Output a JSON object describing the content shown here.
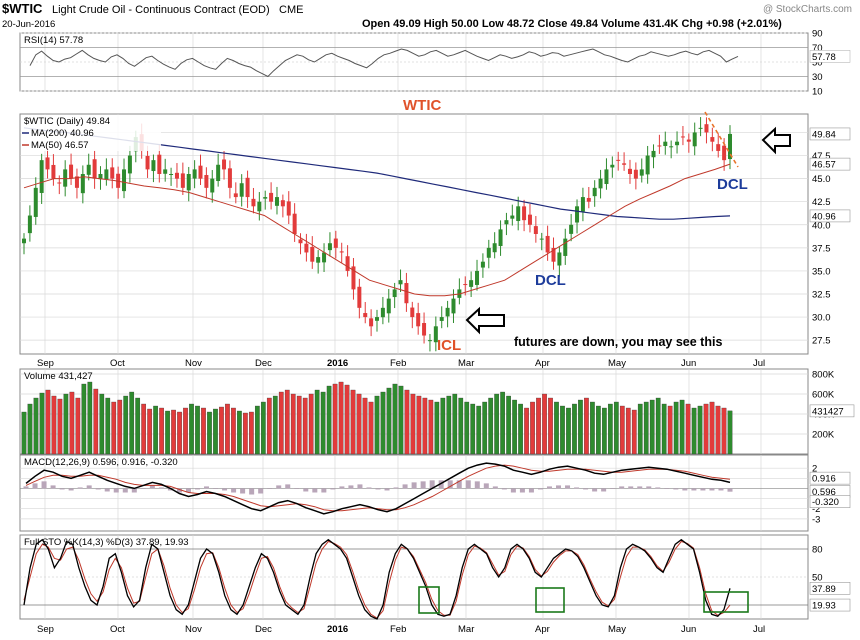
{
  "header": {
    "symbol": "$WTIC",
    "name": "Light Crude Oil - Continuous Contract (EOD)",
    "exchange": "CME",
    "date": "20-Jun-2016",
    "ohlc": "Open 49.09  High 50.00  Low 48.72  Close 49.84  Volume 431.4K  Chg +0.98 (+2.01%)",
    "open": 49.09,
    "high": 50.0,
    "low": 48.72,
    "close": 49.84,
    "watermark": "@ StockCharts.com"
  },
  "x_axis": {
    "labels": [
      "Sep",
      "Oct",
      "Nov",
      "Dec",
      "2016",
      "Feb",
      "Mar",
      "Apr",
      "May",
      "Jun",
      "Jul"
    ],
    "bold_labels": [
      "2016"
    ]
  },
  "chart_data": [
    {
      "type": "line",
      "panel": "rsi",
      "title": "RSI(14) 57.78",
      "series": [
        {
          "name": "RSI(14)",
          "last": 57.78
        }
      ],
      "ylim": [
        10,
        90
      ],
      "yticks": [
        10,
        30,
        50,
        70,
        90
      ],
      "reference_lines": [
        30,
        70
      ],
      "last_label": "57.78",
      "values": [
        45,
        60,
        65,
        58,
        52,
        50,
        54,
        56,
        61,
        66,
        60,
        55,
        52,
        50,
        57,
        60,
        55,
        48,
        44,
        50,
        56,
        58,
        52,
        47,
        43,
        40,
        48,
        53,
        55,
        50,
        45,
        42,
        40,
        48,
        55,
        52,
        48,
        45,
        43,
        38,
        34,
        30,
        38,
        45,
        52,
        56,
        60,
        58,
        53,
        50,
        55,
        60,
        62,
        58,
        55,
        52,
        48,
        45,
        42,
        48,
        55,
        60,
        62,
        65,
        68,
        66,
        62,
        58,
        60,
        64,
        66,
        62,
        58,
        60,
        63,
        66,
        62,
        58,
        55,
        52,
        56,
        60,
        58,
        55,
        57,
        60,
        64,
        62,
        58,
        60,
        63,
        62,
        58,
        60,
        62,
        64,
        66,
        68,
        64,
        60,
        58,
        55,
        52,
        50,
        54,
        58,
        60,
        64,
        62,
        60,
        58,
        60,
        63,
        65,
        62,
        60,
        64,
        66,
        62,
        58,
        50,
        54,
        57.78
      ]
    },
    {
      "type": "candlestick",
      "panel": "price",
      "title": "$WTIC (Daily) 49.84",
      "series": [
        {
          "name": "$WTIC (Daily)",
          "last": 49.84
        },
        {
          "name": "MA(200)",
          "last": 40.96
        },
        {
          "name": "MA(50)",
          "last": 46.57
        }
      ],
      "legend": [
        "$WTIC (Daily) 49.84",
        "MA(200) 40.96",
        "MA(50) 46.57"
      ],
      "ylim": [
        26.0,
        52.0
      ],
      "yticks": [
        27.5,
        30.0,
        32.5,
        35.0,
        37.5,
        40.0,
        42.5,
        45.0,
        47.5,
        50.0
      ],
      "last_labels": {
        "close": "49.84",
        "ma50": "46.57",
        "ma200": "40.96"
      },
      "closes": [
        38.5,
        41,
        44,
        47,
        46,
        45,
        44.5,
        46,
        45,
        44,
        45.5,
        46.5,
        45,
        45.5,
        46,
        45,
        44,
        46,
        47.5,
        49.5,
        48,
        46,
        47,
        45.5,
        46,
        45.5,
        45,
        44,
        45.5,
        46,
        45,
        44,
        45,
        46.5,
        46,
        44,
        43,
        44.5,
        43,
        42,
        42.5,
        43,
        42.5,
        43,
        42,
        41,
        39,
        38,
        37,
        36,
        36.5,
        37,
        38,
        37.5,
        37,
        35,
        33,
        31,
        30,
        29,
        30,
        31,
        32,
        33,
        34,
        31.5,
        30,
        29,
        28,
        27.5,
        29,
        30,
        31,
        32,
        33,
        33.5,
        34,
        35,
        36,
        37.5,
        38,
        39.5,
        40.5,
        41,
        42,
        40.5,
        40,
        39,
        38.5,
        37,
        36,
        37,
        38.5,
        40,
        42,
        43,
        42.5,
        44,
        45,
        46,
        46.5,
        47,
        46.5,
        45.5,
        45,
        46,
        47.5,
        48,
        48.5,
        49,
        48.5,
        49,
        49.5,
        49,
        50,
        50.5,
        50,
        49,
        48,
        47,
        49.84
      ],
      "ma200": [
        50.5,
        50.3,
        50.1,
        50,
        49.8,
        49.6,
        49.4,
        49.2,
        49,
        48.8,
        48.6,
        48.4,
        48.2,
        48,
        47.8,
        47.6,
        47.4,
        47.2,
        47,
        46.8,
        46.6,
        46.4,
        46.2,
        46,
        45.8,
        45.6,
        45.3,
        45,
        44.7,
        44.4,
        44.1,
        43.8,
        43.5,
        43.2,
        42.9,
        42.6,
        42.3,
        42,
        41.7,
        41.5,
        41.3,
        41.1,
        40.9,
        40.8,
        40.7,
        40.6,
        40.6,
        40.7,
        40.8,
        40.9,
        40.96
      ],
      "ma50": [
        44,
        44.5,
        45,
        45,
        45.2,
        45,
        44.8,
        44.5,
        44.2,
        44,
        43.8,
        43.5,
        43,
        42.5,
        42,
        41.5,
        41,
        40,
        39,
        38,
        37,
        36,
        35,
        34,
        33.5,
        33,
        32.5,
        32.3,
        32.3,
        32.5,
        33,
        33.5,
        34,
        35,
        36,
        37,
        38,
        39,
        40,
        41,
        42,
        42.8,
        43.5,
        44.2,
        45,
        45.5,
        46,
        46.57
      ],
      "annotations": [
        {
          "text": "WTIC",
          "color": "#e0522a"
        },
        {
          "text": "ICL",
          "color": "#e0522a"
        },
        {
          "text": "DCL",
          "color": "#1d3c9b"
        },
        {
          "text": "DCL",
          "color": "#1d3c9b"
        },
        {
          "text": "futures are down, you may see this",
          "color": "#000000"
        }
      ]
    },
    {
      "type": "bar",
      "panel": "volume",
      "title": "Volume 431,427",
      "series": [
        {
          "name": "Volume",
          "last": 431427
        }
      ],
      "ylim": [
        0,
        850000
      ],
      "yticks_labels": [
        "200K",
        "400K",
        "600K",
        "800K"
      ],
      "yticks": [
        200000,
        400000,
        600000,
        800000
      ],
      "last_label": "431427",
      "values": [
        420000,
        500000,
        560000,
        610000,
        640000,
        580000,
        550000,
        600000,
        620000,
        560000,
        700000,
        720000,
        650000,
        600000,
        560000,
        520000,
        540000,
        580000,
        620000,
        560000,
        500000,
        450000,
        480000,
        460000,
        430000,
        440000,
        420000,
        460000,
        500000,
        480000,
        460000,
        420000,
        450000,
        470000,
        500000,
        460000,
        430000,
        410000,
        420000,
        480000,
        520000,
        560000,
        580000,
        620000,
        640000,
        600000,
        580000,
        560000,
        600000,
        640000,
        620000,
        680000,
        700000,
        720000,
        690000,
        640000,
        600000,
        560000,
        520000,
        580000,
        620000,
        660000,
        700000,
        680000,
        640000,
        600000,
        580000,
        560000,
        540000,
        520000,
        560000,
        580000,
        600000,
        560000,
        520000,
        500000,
        480000,
        520000,
        560000,
        600000,
        620000,
        580000,
        540000,
        500000,
        460000,
        520000,
        560000,
        600000,
        560000,
        520000,
        480000,
        460000,
        500000,
        540000,
        560000,
        520000,
        480000,
        460000,
        500000,
        520000,
        480000,
        460000,
        440000,
        500000,
        520000,
        540000,
        560000,
        500000,
        480000,
        520000,
        540000,
        500000,
        460000,
        480000,
        500000,
        520000,
        480000,
        460000,
        431427
      ],
      "up_color": "#2e8b2e",
      "down_color": "#e23b3b"
    },
    {
      "type": "line",
      "panel": "macd",
      "title": "MACD(12,26,9) 0.596, 0.916, -0.320",
      "series": [
        {
          "name": "MACD",
          "last": 0.596
        },
        {
          "name": "Signal",
          "last": 0.916
        },
        {
          "name": "Histogram",
          "last": -0.32
        }
      ],
      "ylim": [
        -4.2,
        3.3
      ],
      "yticks": [
        -3,
        -2,
        -1,
        0,
        1,
        2
      ],
      "last_labels": {
        "signal": "0.916",
        "macd": "0.596",
        "histogram": "-0.320"
      },
      "macd": [
        0.5,
        1.2,
        1.8,
        1.6,
        1.2,
        1,
        1.3,
        1.6,
        1.2,
        0.8,
        0.5,
        0.2,
        0,
        0.3,
        0.6,
        0.4,
        0,
        -0.5,
        -0.8,
        -0.6,
        -0.3,
        -0.5,
        -0.8,
        -1.2,
        -1.6,
        -2,
        -2.2,
        -1.8,
        -1.4,
        -1.2,
        -1.5,
        -1.9,
        -2.2,
        -2.5,
        -2.3,
        -2,
        -1.8,
        -1.6,
        -1.8,
        -2.1,
        -2.3,
        -2,
        -1.5,
        -1,
        -0.5,
        0,
        0.5,
        1,
        1.5,
        2,
        2.3,
        2.5,
        2.4,
        2.2,
        1.8,
        1.6,
        1.4,
        1.6,
        1.9,
        2.1,
        2.2,
        2,
        1.8,
        1.5,
        1.4,
        1.6,
        1.8,
        1.9,
        2,
        2.1,
        2,
        1.9,
        1.7,
        1.5,
        1.3,
        1.1,
        0.9,
        0.8,
        0.596
      ],
      "signal": [
        0.3,
        0.7,
        1.1,
        1.3,
        1.3,
        1.2,
        1.2,
        1.3,
        1.3,
        1.1,
        0.9,
        0.6,
        0.4,
        0.3,
        0.3,
        0.3,
        0.2,
        -0.1,
        -0.4,
        -0.5,
        -0.5,
        -0.5,
        -0.6,
        -0.8,
        -1.1,
        -1.4,
        -1.7,
        -1.8,
        -1.7,
        -1.6,
        -1.5,
        -1.6,
        -1.8,
        -2.1,
        -2.2,
        -2.2,
        -2.1,
        -2,
        -1.9,
        -2,
        -2.1,
        -2.1,
        -1.9,
        -1.6,
        -1.2,
        -0.8,
        -0.3,
        0.2,
        0.7,
        1.2,
        1.6,
        2,
        2.2,
        2.3,
        2.2,
        2,
        1.8,
        1.7,
        1.7,
        1.8,
        1.9,
        1.9,
        1.9,
        1.8,
        1.7,
        1.6,
        1.6,
        1.7,
        1.8,
        1.9,
        1.9,
        1.9,
        1.8,
        1.7,
        1.5,
        1.3,
        1.1,
        1,
        0.916
      ]
    },
    {
      "type": "line",
      "panel": "full_sto",
      "title": "Full STO %K(14,3) %D(3) 37.89, 19.93",
      "series": [
        {
          "name": "%K(14,3)",
          "last": 37.89
        },
        {
          "name": "%D(3)",
          "last": 19.93
        }
      ],
      "ylim": [
        5,
        95
      ],
      "yticks": [
        20,
        50,
        80
      ],
      "reference_lines": [
        20,
        80
      ],
      "last_labels": {
        "k": "37.89",
        "d": "19.93"
      },
      "k": [
        20,
        60,
        85,
        90,
        80,
        60,
        70,
        88,
        85,
        60,
        40,
        25,
        20,
        40,
        70,
        75,
        55,
        30,
        18,
        25,
        60,
        85,
        80,
        55,
        30,
        15,
        10,
        20,
        45,
        70,
        80,
        75,
        55,
        30,
        15,
        10,
        20,
        40,
        60,
        75,
        70,
        55,
        35,
        20,
        15,
        10,
        20,
        50,
        75,
        85,
        90,
        85,
        80,
        70,
        50,
        30,
        15,
        8,
        5,
        20,
        55,
        75,
        85,
        80,
        70,
        55,
        40,
        20,
        10,
        8,
        10,
        30,
        60,
        80,
        85,
        80,
        75,
        60,
        50,
        60,
        80,
        85,
        80,
        70,
        55,
        50,
        60,
        70,
        75,
        80,
        78,
        72,
        60,
        45,
        30,
        20,
        18,
        30,
        60,
        80,
        85,
        82,
        78,
        70,
        60,
        55,
        70,
        85,
        90,
        85,
        80,
        55,
        25,
        10,
        8,
        15,
        37.89
      ],
      "d": [
        25,
        50,
        75,
        85,
        82,
        70,
        68,
        80,
        82,
        68,
        48,
        32,
        24,
        34,
        58,
        70,
        60,
        38,
        22,
        24,
        50,
        75,
        80,
        62,
        38,
        20,
        12,
        16,
        36,
        60,
        75,
        76,
        60,
        38,
        20,
        12,
        16,
        32,
        52,
        70,
        72,
        60,
        40,
        24,
        17,
        12,
        16,
        40,
        65,
        80,
        88,
        86,
        82,
        74,
        56,
        36,
        20,
        10,
        6,
        14,
        44,
        68,
        82,
        80,
        72,
        58,
        44,
        26,
        14,
        9,
        9,
        24,
        52,
        74,
        83,
        81,
        76,
        64,
        52,
        56,
        74,
        83,
        81,
        72,
        58,
        51,
        56,
        66,
        73,
        78,
        78,
        74,
        63,
        48,
        34,
        23,
        19,
        26,
        50,
        72,
        82,
        82,
        79,
        72,
        62,
        56,
        66,
        80,
        88,
        86,
        81,
        60,
        32,
        14,
        9,
        12,
        19.93
      ],
      "highlight_boxes": [
        "Feb",
        "Apr",
        "Jun"
      ]
    }
  ],
  "colors": {
    "up": "#2e8b2e",
    "down": "#e23b3b",
    "ma200": "#1f2a7a",
    "ma50": "#c0392b",
    "grid": "#d8d8d8",
    "panel_border": "#888888",
    "highlight_box": "#1a7a1a"
  }
}
